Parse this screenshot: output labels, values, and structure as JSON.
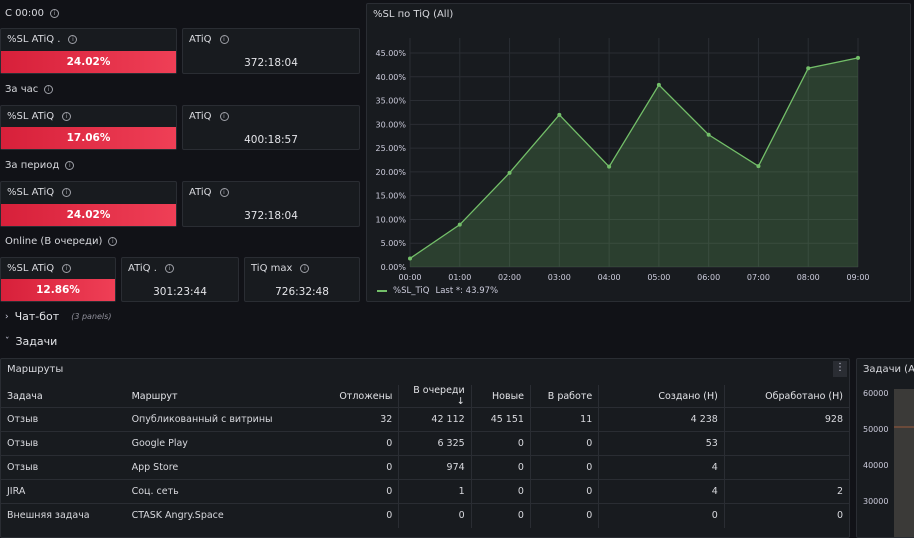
{
  "blocks": {
    "since_midnight": {
      "title": "С 00:00",
      "sl": {
        "label": "%SL ATiQ .",
        "value": "24.02%"
      },
      "atiq": {
        "label": "ATiQ",
        "value": "372:18:04"
      }
    },
    "hour": {
      "title": "За час",
      "sl": {
        "label": "%SL ATiQ",
        "value": "17.06%"
      },
      "atiq": {
        "label": "ATiQ",
        "value": "400:18:57"
      }
    },
    "period": {
      "title": "За период",
      "sl": {
        "label": "%SL ATiQ",
        "value": "24.02%"
      },
      "atiq": {
        "label": "ATiQ",
        "value": "372:18:04"
      }
    },
    "online": {
      "title": "Online (В очереди)",
      "sl": {
        "label": "%SL ATiQ",
        "value": "12.86%"
      },
      "atiq": {
        "label": "ATiQ .",
        "value": "301:23:44"
      },
      "tiq": {
        "label": "TiQ max",
        "value": "726:32:48"
      }
    }
  },
  "chart": {
    "title": "%SL по TiQ (All)",
    "legend": {
      "name": "%SL_TiQ",
      "last": "Last *: 43.97%"
    },
    "yticks": [
      "0.00%",
      "5.00%",
      "10.00%",
      "15.00%",
      "20.00%",
      "25.00%",
      "30.00%",
      "35.00%",
      "40.00%",
      "45.00%"
    ],
    "color": "#73bf69"
  },
  "chart_data": {
    "type": "area",
    "x": [
      "00:00",
      "01:00",
      "02:00",
      "03:00",
      "04:00",
      "05:00",
      "06:00",
      "07:00",
      "08:00",
      "09:00"
    ],
    "series": [
      {
        "name": "%SL_TiQ",
        "values": [
          1.8,
          8.9,
          19.8,
          32.0,
          21.1,
          38.3,
          27.8,
          21.2,
          41.8,
          43.97
        ]
      }
    ],
    "ylim": [
      0,
      45
    ]
  },
  "rows_sections": {
    "chatbot": {
      "title": "Чат-бот",
      "count": "(3 panels)"
    },
    "tasks": {
      "title": "Задачи"
    }
  },
  "routes": {
    "title": "Маршруты",
    "columns": [
      "Задача",
      "Маршрут",
      "Отложены",
      "В очереди",
      "Новые",
      "В работе",
      "Создано (Н)",
      "Обработано (Н)"
    ],
    "sort_arrow": "↓",
    "rows": [
      [
        "Отзыв",
        "Опубликованный с витрины",
        "32",
        "42 112",
        "45 151",
        "11",
        "4 238",
        "928"
      ],
      [
        "Отзыв",
        "Google Play",
        "0",
        "6 325",
        "0",
        "0",
        "53",
        ""
      ],
      [
        "Отзыв",
        "App Store",
        "0",
        "974",
        "0",
        "0",
        "4",
        ""
      ],
      [
        "JIRA",
        "Соц. сеть",
        "0",
        "1",
        "0",
        "0",
        "4",
        "2"
      ],
      [
        "Внешняя задача",
        "CTASK Angry.Space",
        "0",
        "0",
        "0",
        "0",
        "0",
        "0"
      ]
    ]
  },
  "tasks_panel": {
    "title": "Задачи (All",
    "yticks": [
      "60000",
      "50000",
      "40000",
      "30000"
    ]
  }
}
